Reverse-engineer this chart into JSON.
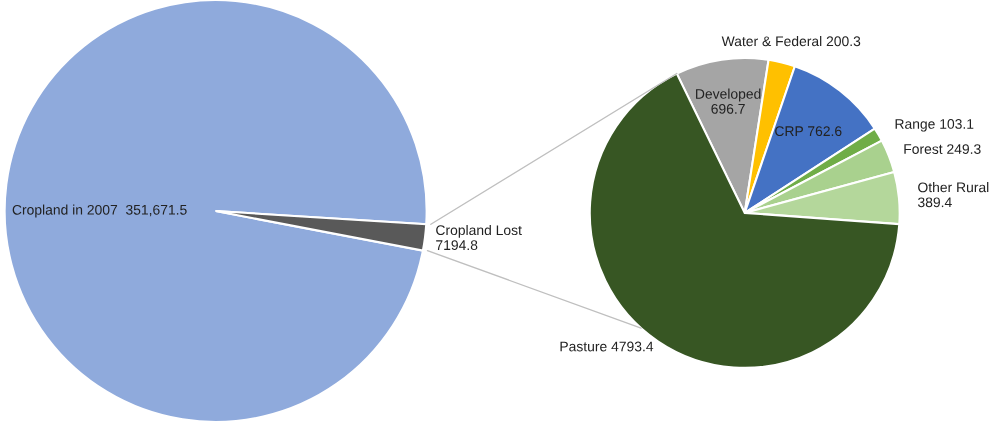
{
  "chart_data": [
    {
      "type": "pie",
      "categories": [
        "Cropland in 2007",
        "Cropland Lost"
      ],
      "values": [
        351671.5,
        7194.8
      ],
      "value_labels": [
        "351,671.5",
        "7194.8"
      ],
      "colors": [
        "#8faadc",
        "#595959"
      ]
    },
    {
      "type": "pie",
      "categories": [
        "Developed",
        "Water & Federal",
        "CRP",
        "Range",
        "Forest",
        "Other Rural",
        "Pasture"
      ],
      "values": [
        696.7,
        200.3,
        762.6,
        103.1,
        249.3,
        389.4,
        4793.4
      ],
      "value_labels": [
        "696.7",
        "200.3",
        "762.6",
        "103.1",
        "249.3",
        "389.4",
        "4793.4"
      ],
      "colors": [
        "#a5a5a5",
        "#ffc000",
        "#4472c4",
        "#70ad47",
        "#a9d18e",
        "#b4d79b",
        "#375623"
      ]
    }
  ]
}
